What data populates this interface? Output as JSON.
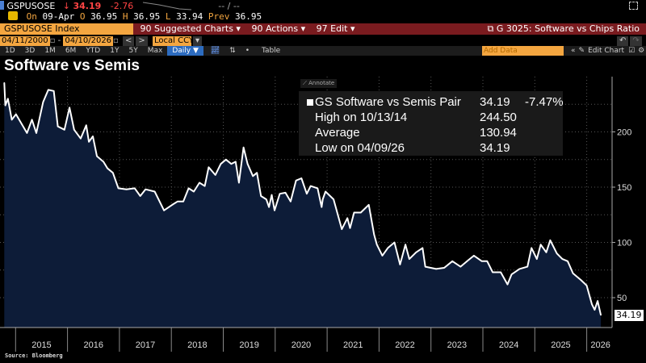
{
  "header": {
    "ticker": "GSPUSOSE",
    "direction_icon": "down-arrow-icon",
    "last": "34.19",
    "change": "-2.76",
    "bid_ask": "-- / --",
    "on_label": "On",
    "date": "09-Apr",
    "open_label": "O",
    "open": "36.95",
    "high_label": "H",
    "high": "36.95",
    "low_label": "L",
    "low": "33.94",
    "prev_label": "Prev",
    "prev": "36.95"
  },
  "toolbar": {
    "security": "GSPUSOSE Index",
    "suggested_charts": "90 Suggested Charts ▾",
    "actions": "90 Actions ▾",
    "edit": "97 Edit ▾",
    "chart_name": "G 3025: Software vs Chips Ratio",
    "start_date": "04/11/2000",
    "end_date": "04/10/2026",
    "currency": "Local CCY",
    "periods": [
      "1D",
      "3D",
      "1M",
      "6M",
      "YTD",
      "1Y",
      "5Y",
      "Max"
    ],
    "frequency": "Daily ▼",
    "table": "Table",
    "add_data_placeholder": "Add Data",
    "edit_chart": "Edit Chart"
  },
  "legend": {
    "annotate": "Annotate",
    "series": "GS Software vs Semis Pair",
    "series_value": "34.19",
    "series_change": "-7.47%",
    "high_label": "High on 10/13/14",
    "high_value": "244.50",
    "avg_label": "Average",
    "avg_value": "130.94",
    "low_label": "Low on 04/09/26",
    "low_value": "34.19"
  },
  "source": "Source: Bloomberg",
  "chart_data": {
    "type": "area",
    "title": "Software vs Semis",
    "series": [
      {
        "name": "GS Software vs Semis Pair",
        "color": "#ffffff",
        "fill": "#0d1c38",
        "x": [
          "2014-10-13",
          "2014-10-20",
          "2014-11-08",
          "2014-12-05",
          "2015-01-04",
          "2015-03-20",
          "2015-04-25",
          "2015-05-25",
          "2015-07-12",
          "2015-08-18",
          "2015-09-26",
          "2015-10-24",
          "2015-12-10",
          "2016-01-15",
          "2016-02-17",
          "2016-04-02",
          "2016-05-11",
          "2016-05-30",
          "2016-06-27",
          "2016-07-25",
          "2016-09-10",
          "2016-10-08",
          "2016-11-16",
          "2016-12-24",
          "2017-02-20",
          "2017-04-17",
          "2017-05-26",
          "2017-07-02",
          "2017-09-06",
          "2017-11-10",
          "2018-01-07",
          "2018-02-14",
          "2018-03-24",
          "2018-05-01",
          "2018-06-07",
          "2018-07-16",
          "2018-08-23",
          "2018-09-20",
          "2018-11-06",
          "2018-12-14",
          "2019-01-20",
          "2019-02-27",
          "2019-03-27",
          "2019-04-20",
          "2019-05-22",
          "2019-06-20",
          "2019-07-27",
          "2019-08-25",
          "2019-09-23",
          "2019-10-30",
          "2019-11-18",
          "2019-12-07",
          "2019-12-27",
          "2020-02-03",
          "2020-03-12",
          "2020-04-18",
          "2020-05-26",
          "2020-07-03",
          "2020-08-10",
          "2020-09-07",
          "2020-10-25",
          "2020-11-23",
          "2020-12-01",
          "2020-12-20",
          "2021-02-16",
          "2021-04-13",
          "2021-05-22",
          "2021-06-10",
          "2021-07-08",
          "2021-08-25",
          "2021-10-20",
          "2021-11-27",
          "2021-12-16",
          "2022-01-24",
          "2022-03-02",
          "2022-04-18",
          "2022-05-27",
          "2022-07-04",
          "2022-08-01",
          "2022-09-18",
          "2022-11-03",
          "2022-11-22",
          "2023-02-07",
          "2023-04-03",
          "2023-05-30",
          "2023-07-26",
          "2023-09-21",
          "2023-10-29",
          "2023-12-24",
          "2024-01-31",
          "2024-03-09",
          "2024-05-05",
          "2024-06-22",
          "2024-07-20",
          "2024-09-15",
          "2024-11-10",
          "2024-12-08",
          "2025-01-15",
          "2025-02-12",
          "2025-03-21",
          "2025-04-18",
          "2025-06-04",
          "2025-07-12",
          "2025-08-19",
          "2025-09-26",
          "2025-11-21",
          "2025-12-31",
          "2026-02-07",
          "2026-02-26",
          "2026-03-17",
          "2026-04-09"
        ],
        "y": [
          244.5,
          224,
          230,
          211,
          216,
          199,
          211,
          199,
          227,
          238,
          237,
          205,
          202,
          222,
          202,
          194,
          206,
          191,
          196,
          178,
          173,
          167,
          163,
          149,
          148,
          149,
          142,
          148,
          146,
          129,
          134,
          137,
          137,
          149,
          146,
          154,
          151,
          168,
          161,
          171,
          175,
          171,
          173,
          154,
          186,
          171,
          160,
          163,
          142,
          139,
          132,
          143,
          129,
          144,
          145,
          137,
          156,
          158,
          144,
          151,
          149,
          132,
          139,
          146,
          139,
          112,
          122,
          113,
          127,
          127,
          134,
          107,
          98,
          88,
          95,
          100,
          80,
          98,
          85,
          91,
          95,
          78,
          76,
          77,
          83,
          78,
          84,
          88,
          83,
          83,
          73,
          73,
          62,
          71,
          76,
          78,
          95,
          85,
          98,
          91,
          102,
          90,
          85,
          83,
          72,
          66,
          61,
          44,
          39,
          47,
          34.19
        ]
      }
    ],
    "x_tick_labels": [
      "2015",
      "2016",
      "2017",
      "2018",
      "2019",
      "2020",
      "2021",
      "2022",
      "2023",
      "2024",
      "2025",
      "2026"
    ],
    "y_ticks": [
      50,
      100,
      150,
      200
    ],
    "ylim": [
      23,
      250
    ],
    "y_axis_side": "right",
    "grid": true,
    "last_value_label": "34.19",
    "background": "#000000"
  }
}
